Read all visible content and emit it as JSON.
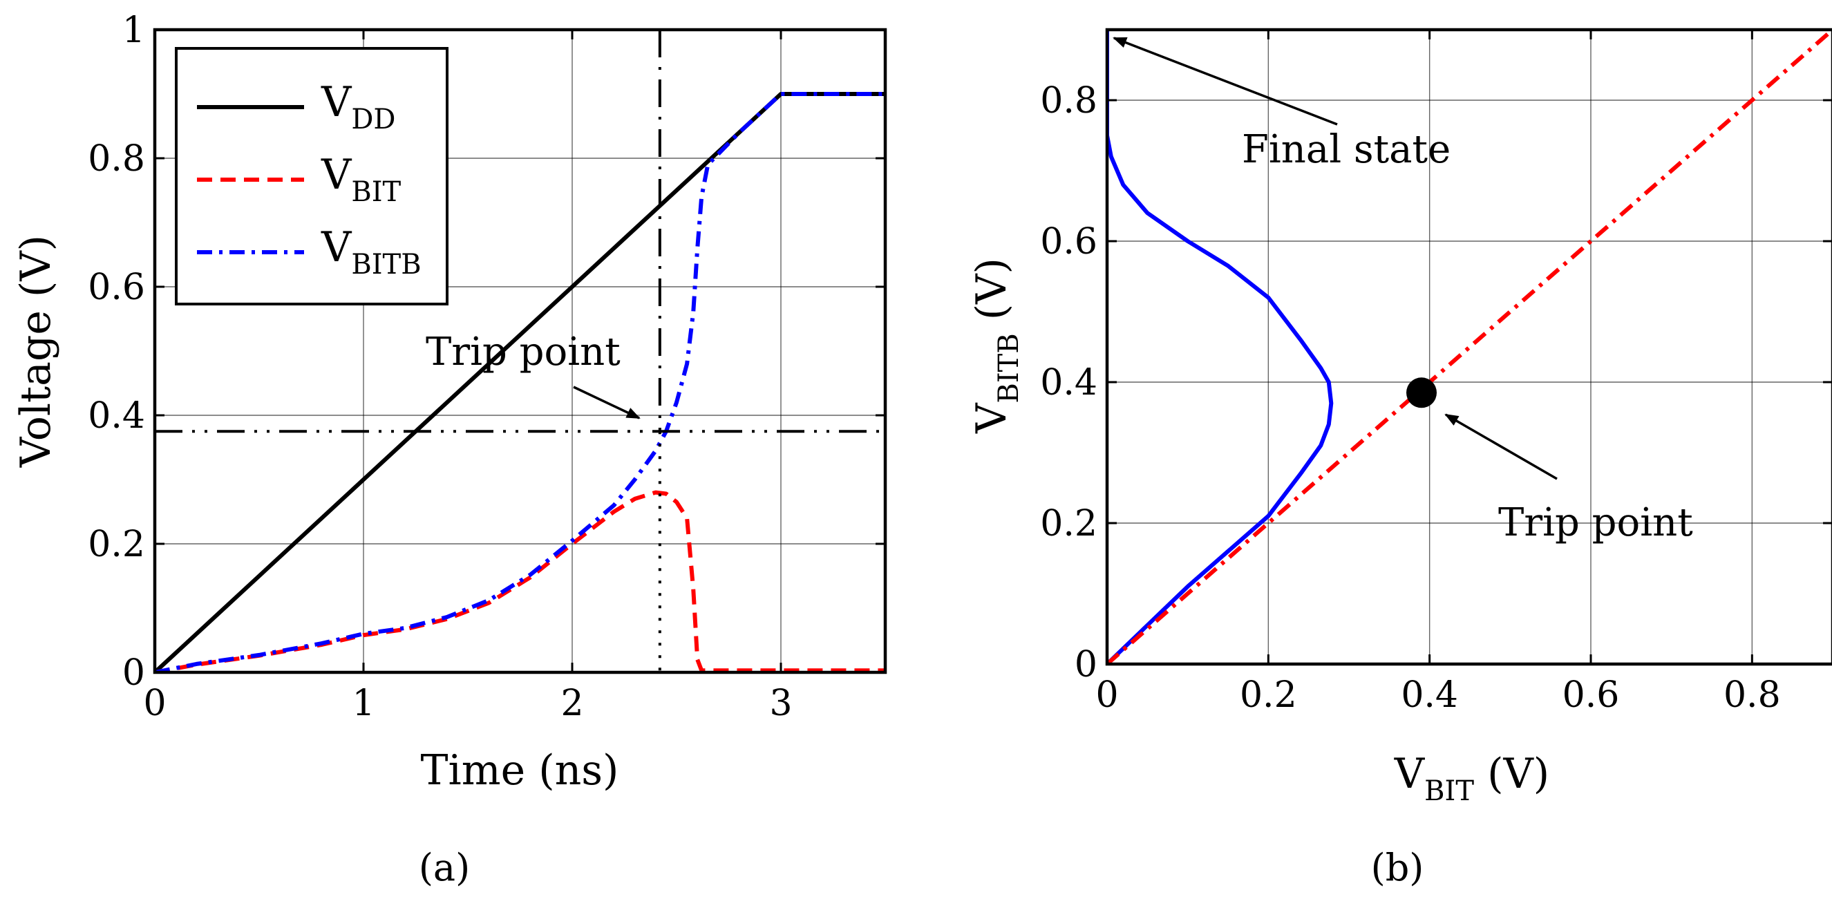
{
  "chart_data": [
    {
      "panel": "a",
      "caption": "(a)",
      "type": "line",
      "xlabel": "Time (ns)",
      "ylabel": "Voltage (V)",
      "xlim": [
        0,
        3.5
      ],
      "ylim": [
        0,
        1
      ],
      "xticks": [
        0,
        1,
        2,
        3
      ],
      "yticks": [
        0,
        0.2,
        0.4,
        0.6,
        0.8,
        1
      ],
      "ytick_labels": [
        "0",
        "0.2",
        "0.4",
        "0.6",
        "0.8",
        "1"
      ],
      "grid": true,
      "legend_position": "top-left",
      "series": [
        {
          "name": "V_DD",
          "label_main": "V",
          "label_sub": "DD",
          "color": "#000000",
          "style": "solid",
          "x": [
            0,
            3.0,
            3.5
          ],
          "y": [
            0,
            0.9,
            0.9
          ]
        },
        {
          "name": "V_BIT",
          "label_main": "V",
          "label_sub": "BIT",
          "color": "#ff0000",
          "style": "dashed",
          "x": [
            0,
            0.2,
            0.5,
            0.8,
            1.0,
            1.2,
            1.4,
            1.6,
            1.8,
            2.0,
            2.2,
            2.3,
            2.4,
            2.45,
            2.5,
            2.55,
            2.58,
            2.6,
            2.62,
            3.0,
            3.5
          ],
          "y": [
            0,
            0.012,
            0.026,
            0.043,
            0.058,
            0.067,
            0.083,
            0.108,
            0.148,
            0.2,
            0.25,
            0.27,
            0.28,
            0.278,
            0.265,
            0.24,
            0.13,
            0.02,
            0.003,
            0.003,
            0.003
          ]
        },
        {
          "name": "V_BITB",
          "label_main": "V",
          "label_sub": "BITB",
          "color": "#0000ff",
          "style": "dashdot",
          "x": [
            0,
            0.2,
            0.5,
            0.8,
            1.0,
            1.2,
            1.4,
            1.6,
            1.8,
            2.0,
            2.2,
            2.3,
            2.4,
            2.45,
            2.5,
            2.55,
            2.58,
            2.6,
            2.62,
            2.65,
            2.8,
            3.0,
            3.5
          ],
          "y": [
            0,
            0.013,
            0.027,
            0.045,
            0.06,
            0.069,
            0.086,
            0.112,
            0.152,
            0.205,
            0.26,
            0.3,
            0.345,
            0.375,
            0.42,
            0.48,
            0.56,
            0.66,
            0.74,
            0.79,
            0.84,
            0.9,
            0.9
          ]
        }
      ],
      "reference_lines": {
        "trip_time_ns": 2.42,
        "trip_voltage_v": 0.375
      },
      "annotation": {
        "text": "Trip point",
        "x": 2.42,
        "y": 0.375
      }
    },
    {
      "panel": "b",
      "caption": "(b)",
      "type": "line",
      "xlabel_main": "V",
      "xlabel_sub": "BIT",
      "xlabel_unit": " (V)",
      "ylabel_main": "V",
      "ylabel_sub": "BITB",
      "ylabel_unit": " (V)",
      "xlim": [
        0,
        0.9
      ],
      "ylim": [
        0,
        0.9
      ],
      "xticks": [
        0,
        0.2,
        0.4,
        0.6,
        0.8
      ],
      "yticks": [
        0,
        0.2,
        0.4,
        0.6,
        0.8
      ],
      "tick_labels": [
        "0",
        "0.2",
        "0.4",
        "0.6",
        "0.8"
      ],
      "grid": true,
      "series": [
        {
          "name": "butterfly",
          "color": "#0000ff",
          "style": "solid",
          "x": [
            0,
            0.05,
            0.1,
            0.15,
            0.2,
            0.24,
            0.265,
            0.275,
            0.278,
            0.275,
            0.265,
            0.24,
            0.2,
            0.15,
            0.1,
            0.05,
            0.02,
            0.005,
            0.0,
            0.0
          ],
          "y": [
            0,
            0.055,
            0.11,
            0.16,
            0.21,
            0.27,
            0.31,
            0.34,
            0.37,
            0.4,
            0.42,
            0.46,
            0.52,
            0.565,
            0.6,
            0.64,
            0.68,
            0.72,
            0.75,
            0.9
          ]
        },
        {
          "name": "diagonal",
          "color": "#ff0000",
          "style": "dashdot",
          "x": [
            0,
            0.9
          ],
          "y": [
            0,
            0.9
          ]
        }
      ],
      "markers": [
        {
          "x": 0.39,
          "y": 0.385
        }
      ],
      "annotations": [
        {
          "text": "Final state",
          "x": 0.0,
          "y": 0.9
        },
        {
          "text": "Trip point",
          "x": 0.39,
          "y": 0.385
        }
      ]
    }
  ]
}
